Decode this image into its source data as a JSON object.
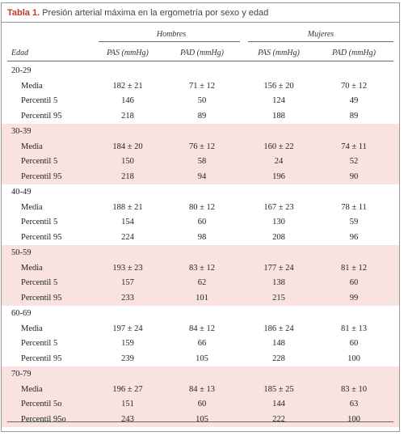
{
  "caption": {
    "label": "Tabla 1.",
    "title": "Presión arterial máxima en la ergometría por sexo y edad"
  },
  "groups": {
    "men": "Hombres",
    "women": "Mujeres"
  },
  "columns": {
    "age": "Edad",
    "pas_men": "PAS (mmHg)",
    "pad_men": "PAD (mmHg)",
    "pas_women": "PAS (mmHg)",
    "pad_women": "PAD (mmHg)"
  },
  "age_groups": [
    {
      "age": "20-29",
      "rows": [
        {
          "label": "Media",
          "v": [
            "182 ± 21",
            "71 ± 12",
            "156 ± 20",
            "70 ± 12"
          ]
        },
        {
          "label": "Percentil 5",
          "v": [
            "146",
            "50",
            "124",
            "49"
          ]
        },
        {
          "label": "Percentil 95",
          "v": [
            "218",
            "89",
            "188",
            "89"
          ]
        }
      ]
    },
    {
      "age": "30-39",
      "rows": [
        {
          "label": "Media",
          "v": [
            "184 ± 20",
            "76 ± 12",
            "160 ± 22",
            "74 ± 11"
          ]
        },
        {
          "label": "Percentil 5",
          "v": [
            "150",
            "58",
            "24",
            "52"
          ]
        },
        {
          "label": "Percentil 95",
          "v": [
            "218",
            "94",
            "196",
            "90"
          ]
        }
      ]
    },
    {
      "age": "40-49",
      "rows": [
        {
          "label": "Media",
          "v": [
            "188 ± 21",
            "80 ± 12",
            "167 ± 23",
            "78 ± 11"
          ]
        },
        {
          "label": "Percentil 5",
          "v": [
            "154",
            "60",
            "130",
            "59"
          ]
        },
        {
          "label": "Percentil 95",
          "v": [
            "224",
            "98",
            "208",
            "96"
          ]
        }
      ]
    },
    {
      "age": "50-59",
      "rows": [
        {
          "label": "Media",
          "v": [
            "193 ± 23",
            "83 ± 12",
            "177 ± 24",
            "81 ± 12"
          ]
        },
        {
          "label": "Percentil 5",
          "v": [
            "157",
            "62",
            "138",
            "60"
          ]
        },
        {
          "label": "Percentil 95",
          "v": [
            "233",
            "101",
            "215",
            "99"
          ]
        }
      ]
    },
    {
      "age": "60-69",
      "rows": [
        {
          "label": "Media",
          "v": [
            "197 ± 24",
            "84 ± 12",
            "186 ± 24",
            "81 ± 13"
          ]
        },
        {
          "label": "Percentil 5",
          "v": [
            "159",
            "66",
            "148",
            "60"
          ]
        },
        {
          "label": "Percentil 95",
          "v": [
            "239",
            "105",
            "228",
            "100"
          ]
        }
      ]
    },
    {
      "age": "70-79",
      "rows": [
        {
          "label": "Media",
          "v": [
            "196 ± 27",
            "84 ± 13",
            "185 ± 25",
            "83 ± 10"
          ]
        },
        {
          "label": "Percentil 5o",
          "v": [
            "151",
            "60",
            "144",
            "63"
          ]
        },
        {
          "label": "Percentil 95o",
          "v": [
            "243",
            "105",
            "222",
            "100"
          ]
        }
      ]
    }
  ],
  "colors": {
    "caption_label": "#c0392b",
    "shade": "#f9e3e1",
    "rule": "#666666"
  }
}
